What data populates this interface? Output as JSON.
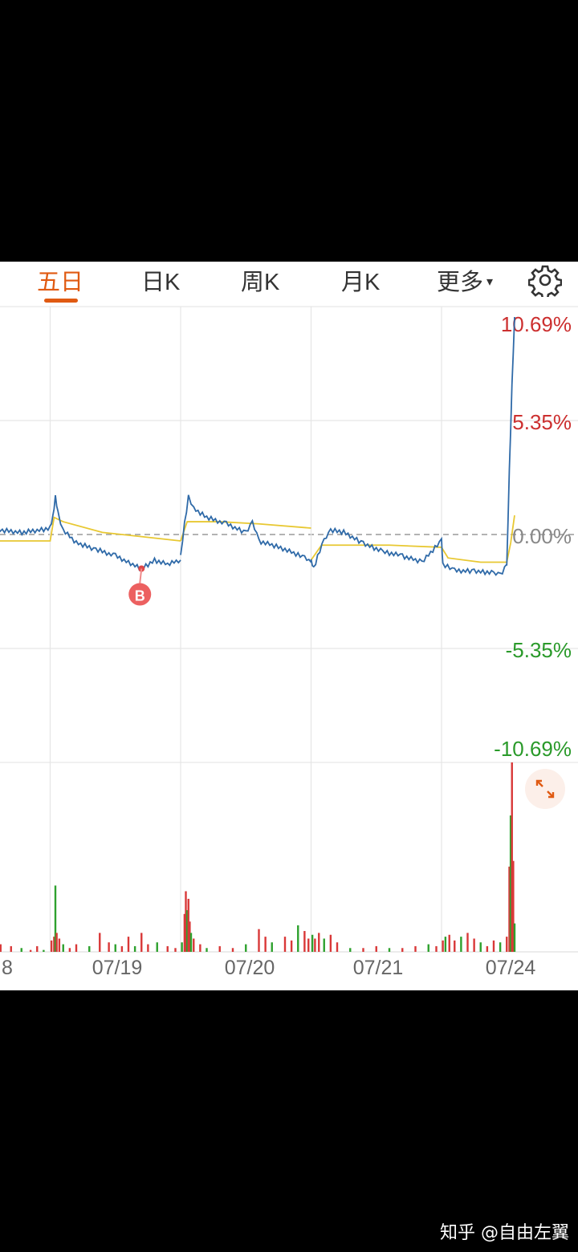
{
  "tabs": [
    {
      "label": "五日",
      "active": true
    },
    {
      "label": "日K",
      "active": false
    },
    {
      "label": "周K",
      "active": false
    },
    {
      "label": "月K",
      "active": false
    },
    {
      "label": "更多",
      "active": false
    }
  ],
  "more_arrow": "▾",
  "settings_icon": "gear-icon",
  "colors": {
    "accent": "#e05a12",
    "price": "#2f6aa8",
    "avg": "#e8c832",
    "up": "#d93838",
    "down": "#2ea12e"
  },
  "chart_data": {
    "type": "line",
    "x_ticks": [
      "8",
      "07/19",
      "07/20",
      "07/21",
      "07/24"
    ],
    "y_ticks": [
      {
        "label": "10.69%",
        "value": 10.69
      },
      {
        "label": "5.35%",
        "value": 5.35
      },
      {
        "label": "0.00%",
        "value": 0
      },
      {
        "label": "-5.35%",
        "value": -5.35
      },
      {
        "label": "-10.69%",
        "value": -10.69
      }
    ],
    "ylim": [
      -10.69,
      10.69
    ],
    "marker": {
      "label": "B",
      "day_index": 1.7,
      "value": -1.6
    },
    "price_series": [
      [
        0.4,
        [
          [
            0,
            0.3
          ],
          [
            0.2,
            0.2
          ],
          [
            0.4,
            0.1
          ],
          [
            0.6,
            0.2
          ],
          [
            0.8,
            0.1
          ],
          [
            1.0,
            0.3
          ],
          [
            1.02,
            0.8
          ],
          [
            1.04,
            1.8
          ],
          [
            1.06,
            1.0
          ],
          [
            1.1,
            0.2
          ],
          [
            1.2,
            -0.4
          ],
          [
            1.35,
            -0.7
          ],
          [
            1.5,
            -1.0
          ],
          [
            1.6,
            -1.3
          ],
          [
            1.7,
            -1.6
          ],
          [
            1.8,
            -1.2
          ],
          [
            1.9,
            -1.4
          ],
          [
            2.0,
            -1.2
          ]
        ]
      ],
      [
        0.4,
        [
          [
            2.0,
            -1.0
          ],
          [
            2.03,
            0.5
          ],
          [
            2.06,
            1.8
          ],
          [
            2.1,
            1.2
          ],
          [
            2.2,
            0.8
          ],
          [
            2.35,
            0.5
          ],
          [
            2.5,
            0.1
          ],
          [
            2.55,
            0.6
          ],
          [
            2.6,
            -0.3
          ],
          [
            2.8,
            -0.7
          ],
          [
            2.95,
            -1.1
          ],
          [
            3.0,
            -1.3
          ]
        ]
      ],
      [
        0.4,
        [
          [
            3.0,
            -1.2
          ],
          [
            3.02,
            -1.6
          ],
          [
            3.05,
            -1.0
          ],
          [
            3.1,
            -0.3
          ],
          [
            3.15,
            0.2
          ],
          [
            3.25,
            0.1
          ],
          [
            3.4,
            -0.4
          ],
          [
            3.55,
            -0.8
          ],
          [
            3.7,
            -1.0
          ],
          [
            3.85,
            -1.3
          ],
          [
            4.0,
            -0.3
          ],
          [
            4.01,
            -1.4
          ],
          [
            4.1,
            -1.7
          ],
          [
            4.25,
            -1.7
          ],
          [
            4.4,
            -1.8
          ],
          [
            4.45,
            -1.9
          ],
          [
            4.5,
            -1.4
          ]
        ]
      ],
      [
        0.4,
        [
          [
            4.5,
            -1.5
          ],
          [
            4.52,
            3.0
          ],
          [
            4.54,
            7.0
          ],
          [
            4.56,
            10.2
          ]
        ]
      ]
    ],
    "avg_series": [
      [
        0.4,
        [
          [
            0,
            -0.3
          ],
          [
            1.0,
            -0.3
          ],
          [
            1.03,
            0.8
          ],
          [
            1.1,
            0.6
          ],
          [
            1.4,
            0.1
          ],
          [
            1.7,
            -0.1
          ],
          [
            2.0,
            -0.3
          ]
        ]
      ],
      [
        0.4,
        [
          [
            2.0,
            -0.3
          ],
          [
            2.05,
            0.6
          ],
          [
            2.3,
            0.6
          ],
          [
            2.6,
            0.5
          ],
          [
            3.0,
            0.3
          ]
        ]
      ],
      [
        0.4,
        [
          [
            3.0,
            -1.2
          ],
          [
            3.08,
            -0.5
          ],
          [
            3.3,
            -0.5
          ],
          [
            3.6,
            -0.5
          ],
          [
            4.0,
            -0.6
          ],
          [
            4.05,
            -1.1
          ],
          [
            4.3,
            -1.3
          ],
          [
            4.5,
            -1.3
          ],
          [
            4.53,
            -0.4
          ],
          [
            4.56,
            0.9
          ]
        ]
      ]
    ],
    "volume": [
      [
        0.02,
        0.7
      ],
      [
        0.05,
        0.3
      ],
      [
        0.1,
        0.4
      ],
      [
        0.15,
        0.2
      ],
      [
        0.22,
        0.8
      ],
      [
        0.3,
        0.5
      ],
      [
        0.38,
        0.6
      ],
      [
        0.45,
        0.9
      ],
      [
        0.5,
        0.5
      ],
      [
        0.56,
        0.7
      ],
      [
        0.62,
        0.4
      ],
      [
        0.7,
        0.3
      ],
      [
        0.78,
        0.2
      ],
      [
        0.85,
        0.1
      ],
      [
        0.9,
        0.3
      ],
      [
        0.95,
        0.1
      ],
      [
        1.01,
        0.6
      ],
      [
        1.03,
        0.8
      ],
      [
        1.04,
        3.5
      ],
      [
        1.05,
        1.0
      ],
      [
        1.07,
        0.7
      ],
      [
        1.1,
        0.4
      ],
      [
        1.15,
        0.2
      ],
      [
        1.2,
        0.4
      ],
      [
        1.3,
        0.3
      ],
      [
        1.38,
        1.0
      ],
      [
        1.45,
        0.5
      ],
      [
        1.5,
        0.4
      ],
      [
        1.55,
        0.3
      ],
      [
        1.6,
        0.8
      ],
      [
        1.65,
        0.3
      ],
      [
        1.7,
        1.0
      ],
      [
        1.75,
        0.4
      ],
      [
        1.82,
        0.5
      ],
      [
        1.9,
        0.3
      ],
      [
        1.96,
        0.2
      ],
      [
        2.01,
        0.5
      ],
      [
        2.03,
        2.0
      ],
      [
        2.04,
        3.2
      ],
      [
        2.05,
        2.2
      ],
      [
        2.06,
        2.8
      ],
      [
        2.07,
        1.6
      ],
      [
        2.08,
        1.0
      ],
      [
        2.1,
        0.7
      ],
      [
        2.15,
        0.4
      ],
      [
        2.2,
        0.2
      ],
      [
        2.3,
        0.3
      ],
      [
        2.4,
        0.2
      ],
      [
        2.5,
        0.4
      ],
      [
        2.6,
        1.2
      ],
      [
        2.65,
        0.8
      ],
      [
        2.7,
        0.5
      ],
      [
        2.8,
        0.8
      ],
      [
        2.85,
        0.6
      ],
      [
        2.9,
        1.4
      ],
      [
        2.95,
        1.1
      ],
      [
        2.98,
        0.7
      ],
      [
        3.01,
        0.9
      ],
      [
        3.03,
        0.7
      ],
      [
        3.06,
        1.0
      ],
      [
        3.1,
        0.7
      ],
      [
        3.15,
        0.9
      ],
      [
        3.2,
        0.5
      ],
      [
        3.3,
        0.2
      ],
      [
        3.4,
        0.2
      ],
      [
        3.5,
        0.3
      ],
      [
        3.6,
        0.2
      ],
      [
        3.7,
        0.2
      ],
      [
        3.8,
        0.3
      ],
      [
        3.9,
        0.4
      ],
      [
        3.96,
        0.3
      ],
      [
        4.01,
        0.6
      ],
      [
        4.03,
        0.8
      ],
      [
        4.06,
        0.9
      ],
      [
        4.1,
        0.6
      ],
      [
        4.15,
        0.8
      ],
      [
        4.2,
        1.0
      ],
      [
        4.25,
        0.7
      ],
      [
        4.3,
        0.5
      ],
      [
        4.35,
        0.3
      ],
      [
        4.4,
        0.6
      ],
      [
        4.45,
        0.5
      ],
      [
        4.5,
        0.8
      ],
      [
        4.52,
        4.5
      ],
      [
        4.53,
        7.2
      ],
      [
        4.54,
        10.0
      ],
      [
        4.55,
        4.8
      ],
      [
        4.56,
        1.5
      ]
    ]
  },
  "watermark": "知乎 @自由左翼"
}
